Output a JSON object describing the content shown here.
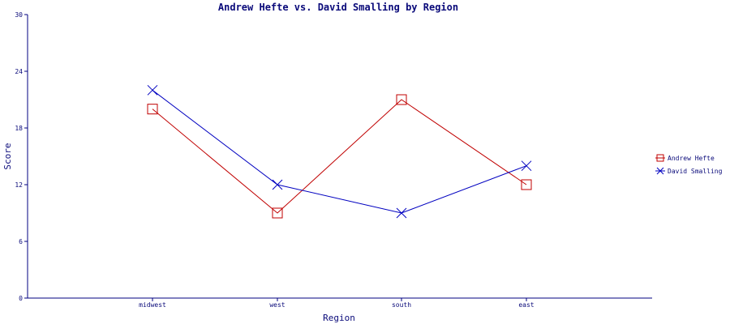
{
  "chart_data": {
    "type": "line",
    "title": "Andrew Hefte vs. David Smalling by Region",
    "xlabel": "Region",
    "ylabel": "Score",
    "categories": [
      "midwest",
      "west",
      "south",
      "east"
    ],
    "ylim": [
      0,
      30
    ],
    "yticks": [
      0,
      6,
      12,
      18,
      24,
      30
    ],
    "grid": false,
    "legend_position": "right",
    "axis_color": "#000080",
    "series": [
      {
        "name": "Andrew Hefte",
        "values": [
          20,
          9,
          21,
          12
        ],
        "color": "#c00000",
        "marker": "square"
      },
      {
        "name": "David Smalling",
        "values": [
          22,
          12,
          9,
          14
        ],
        "color": "#0000c0",
        "marker": "x"
      }
    ]
  }
}
